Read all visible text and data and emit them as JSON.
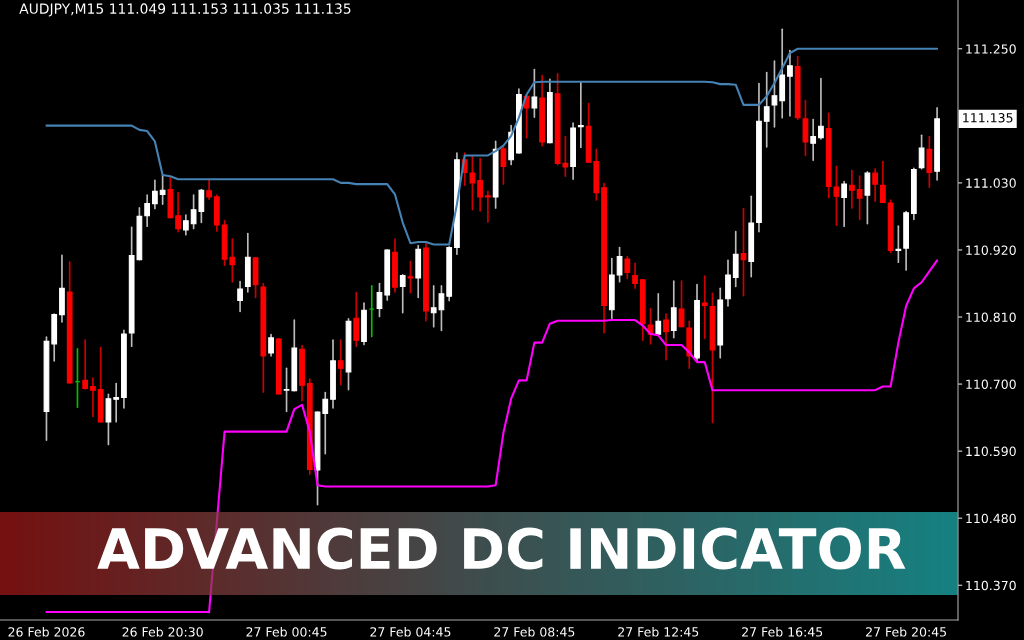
{
  "chart_data": {
    "type": "candlestick",
    "title": "ADVANCED DC INDICATOR",
    "subtitle": "AUDJPY,M15 111.049 111.153 111.035 111.135",
    "categories": [
      "26 Feb 2026",
      null,
      null,
      null,
      null,
      null,
      null,
      null,
      null,
      null,
      null,
      null,
      null,
      null,
      null,
      "26 Feb 20:30",
      null,
      null,
      null,
      null,
      null,
      null,
      null,
      null,
      null,
      null,
      null,
      null,
      null,
      null,
      null,
      "27 Feb 00:45",
      null,
      null,
      null,
      null,
      null,
      null,
      null,
      null,
      null,
      null,
      null,
      null,
      null,
      null,
      null,
      "27 Feb 04:45",
      null,
      null,
      null,
      null,
      null,
      null,
      null,
      null,
      null,
      null,
      null,
      null,
      null,
      null,
      null,
      "27 Feb 08:45",
      null,
      null,
      null,
      null,
      null,
      null,
      null,
      null,
      null,
      null,
      null,
      null,
      null,
      null,
      null,
      "27 Feb 12:45",
      null,
      null,
      null,
      null,
      null,
      null,
      null,
      null,
      null,
      null,
      null,
      null,
      null,
      null,
      null,
      "27 Feb 16:45",
      null,
      null,
      null,
      null,
      null,
      null,
      null,
      null,
      null,
      null,
      null,
      null,
      null,
      null,
      null,
      "27 Feb 20:45",
      null,
      null,
      null,
      null
    ],
    "ohlc": [
      [
        110.655,
        110.777,
        110.608,
        110.77
      ],
      [
        110.766,
        110.815,
        110.738,
        110.814
      ],
      [
        110.814,
        110.911,
        110.802,
        110.857
      ],
      [
        110.851,
        110.9,
        110.702,
        110.702
      ],
      [
        110.704,
        110.758,
        110.662,
        110.704
      ],
      [
        110.706,
        110.772,
        110.692,
        110.693
      ],
      [
        110.696,
        110.71,
        110.647,
        110.69
      ],
      [
        110.691,
        110.76,
        110.638,
        110.638
      ],
      [
        110.638,
        110.683,
        110.601,
        110.676
      ],
      [
        110.675,
        110.701,
        110.638,
        110.678
      ],
      [
        110.678,
        110.788,
        110.661,
        110.782
      ],
      [
        110.784,
        110.957,
        110.762,
        110.911
      ],
      [
        110.904,
        110.989,
        110.904,
        110.975
      ],
      [
        110.976,
        111.01,
        110.959,
        110.996
      ],
      [
        110.996,
        111.034,
        110.988,
        111.016
      ],
      [
        111.011,
        111.042,
        110.995,
        111.018
      ],
      [
        111.019,
        111.039,
        110.973,
        110.973
      ],
      [
        110.976,
        111.014,
        110.95,
        110.955
      ],
      [
        110.953,
        110.977,
        110.945,
        110.968
      ],
      [
        110.963,
        111.01,
        110.955,
        110.986
      ],
      [
        110.983,
        111.019,
        110.965,
        111.018
      ],
      [
        111.017,
        111.034,
        111.003,
        111.007
      ],
      [
        111.007,
        111.01,
        110.951,
        110.961
      ],
      [
        110.961,
        110.968,
        110.895,
        110.905
      ],
      [
        110.908,
        110.938,
        110.868,
        110.896
      ],
      [
        110.837,
        110.868,
        110.819,
        110.856
      ],
      [
        110.86,
        110.947,
        110.851,
        110.908
      ],
      [
        110.907,
        110.907,
        110.842,
        110.863
      ],
      [
        110.859,
        110.865,
        110.687,
        110.746
      ],
      [
        110.751,
        110.781,
        110.746,
        110.776
      ],
      [
        110.774,
        110.774,
        110.684,
        110.684
      ],
      [
        110.69,
        110.726,
        110.655,
        110.691
      ],
      [
        110.689,
        110.805,
        110.689,
        110.759
      ],
      [
        110.757,
        110.763,
        110.673,
        110.698
      ],
      [
        110.701,
        110.708,
        110.552,
        110.56
      ],
      [
        110.559,
        110.654,
        110.502,
        110.654
      ],
      [
        110.652,
        110.686,
        110.586,
        110.675
      ],
      [
        110.675,
        110.772,
        110.661,
        110.738
      ],
      [
        110.738,
        110.772,
        110.699,
        110.726
      ],
      [
        110.72,
        110.807,
        110.691,
        110.803
      ],
      [
        110.808,
        110.85,
        110.762,
        110.772
      ],
      [
        110.77,
        110.833,
        110.765,
        110.821
      ],
      [
        110.823,
        110.861,
        110.778,
        110.823
      ],
      [
        110.824,
        110.865,
        110.811,
        110.85
      ],
      [
        110.846,
        110.92,
        110.838,
        110.92
      ],
      [
        110.916,
        110.938,
        110.851,
        110.859
      ],
      [
        110.86,
        110.879,
        110.817,
        110.878
      ],
      [
        110.876,
        110.901,
        110.85,
        110.874
      ],
      [
        110.874,
        110.927,
        110.842,
        110.921
      ],
      [
        110.923,
        110.932,
        110.804,
        110.82
      ],
      [
        110.817,
        110.861,
        110.794,
        110.825
      ],
      [
        110.822,
        110.861,
        110.788,
        110.848
      ],
      [
        110.844,
        110.925,
        110.837,
        110.924
      ],
      [
        110.924,
        111.079,
        110.913,
        111.068
      ],
      [
        111.068,
        111.079,
        111.026,
        111.047
      ],
      [
        111.046,
        111.074,
        110.986,
        111.03
      ],
      [
        111.034,
        111.07,
        110.984,
        111.007
      ],
      [
        111.009,
        111.016,
        110.966,
        111.007
      ],
      [
        111.007,
        111.098,
        110.989,
        111.085
      ],
      [
        111.086,
        111.091,
        111.028,
        111.057
      ],
      [
        111.068,
        111.124,
        111.06,
        111.113
      ],
      [
        111.079,
        111.184,
        111.079,
        111.175
      ],
      [
        111.172,
        111.175,
        111.104,
        111.153
      ],
      [
        111.153,
        111.216,
        111.138,
        111.171
      ],
      [
        111.169,
        111.206,
        111.091,
        111.097
      ],
      [
        111.096,
        111.2,
        111.096,
        111.178
      ],
      [
        111.176,
        111.209,
        111.06,
        111.062
      ],
      [
        111.062,
        111.106,
        111.041,
        111.056
      ],
      [
        111.057,
        111.128,
        111.036,
        111.12
      ],
      [
        111.122,
        111.195,
        111.088,
        111.124
      ],
      [
        111.123,
        111.16,
        111.064,
        111.064
      ],
      [
        111.065,
        111.085,
        111.002,
        111.014
      ],
      [
        111.022,
        111.029,
        110.784,
        110.829
      ],
      [
        110.822,
        110.906,
        110.808,
        110.879
      ],
      [
        110.879,
        110.924,
        110.868,
        110.909
      ],
      [
        110.905,
        110.909,
        110.873,
        110.883
      ],
      [
        110.878,
        110.898,
        110.857,
        110.865
      ],
      [
        110.871,
        110.871,
        110.772,
        110.799
      ],
      [
        110.797,
        110.824,
        110.766,
        110.782
      ],
      [
        110.782,
        110.848,
        110.781,
        110.803
      ],
      [
        110.805,
        110.815,
        110.74,
        110.786
      ],
      [
        110.788,
        110.869,
        110.776,
        110.825
      ],
      [
        110.823,
        110.869,
        110.794,
        110.794
      ],
      [
        110.792,
        110.803,
        110.726,
        110.746
      ],
      [
        110.743,
        110.863,
        110.739,
        110.837
      ],
      [
        110.833,
        110.877,
        110.775,
        110.829
      ],
      [
        110.827,
        110.849,
        110.637,
        110.756
      ],
      [
        110.764,
        110.857,
        110.743,
        110.838
      ],
      [
        110.84,
        110.903,
        110.828,
        110.879
      ],
      [
        110.875,
        110.95,
        110.86,
        110.913
      ],
      [
        110.914,
        110.988,
        110.845,
        110.904
      ],
      [
        110.901,
        111.008,
        110.876,
        110.964
      ],
      [
        110.965,
        111.193,
        110.95,
        111.131
      ],
      [
        111.131,
        111.211,
        111.089,
        111.155
      ],
      [
        111.158,
        111.23,
        111.122,
        111.173
      ],
      [
        111.165,
        111.282,
        111.137,
        111.207
      ],
      [
        111.205,
        111.247,
        111.14,
        111.222
      ],
      [
        111.221,
        111.237,
        111.134,
        111.137
      ],
      [
        111.135,
        111.165,
        111.075,
        111.097
      ],
      [
        111.095,
        111.134,
        111.067,
        111.106
      ],
      [
        111.104,
        111.201,
        111.102,
        111.123
      ],
      [
        111.119,
        111.144,
        111.006,
        111.024
      ],
      [
        111.023,
        111.057,
        110.961,
        111.008
      ],
      [
        111.006,
        111.032,
        110.959,
        111.028
      ],
      [
        111.026,
        111.05,
        110.989,
        111.018
      ],
      [
        111.019,
        111.041,
        110.97,
        111.005
      ],
      [
        111.01,
        111.048,
        110.963,
        111.046
      ],
      [
        111.046,
        111.053,
        111.0,
        111.028
      ],
      [
        111.026,
        111.065,
        110.998,
        110.998
      ],
      [
        110.997,
        111.002,
        110.916,
        110.919
      ],
      [
        110.919,
        110.959,
        110.9,
        110.921
      ],
      [
        110.923,
        110.983,
        110.887,
        110.981
      ],
      [
        110.98,
        111.054,
        110.97,
        111.052
      ],
      [
        111.055,
        111.108,
        111.053,
        111.087
      ],
      [
        111.085,
        111.106,
        111.023,
        111.047
      ],
      [
        111.049,
        111.153,
        111.035,
        111.135
      ]
    ],
    "series": [
      {
        "type": "line",
        "color": "#4682b4",
        "values": [
          111.124,
          111.124,
          111.124,
          111.124,
          111.124,
          111.124,
          111.124,
          111.124,
          111.124,
          111.124,
          111.124,
          111.124,
          111.117,
          111.115,
          111.098,
          111.043,
          111.041,
          111.036,
          111.036,
          111.036,
          111.036,
          111.036,
          111.036,
          111.036,
          111.036,
          111.036,
          111.036,
          111.036,
          111.036,
          111.036,
          111.036,
          111.036,
          111.036,
          111.036,
          111.036,
          111.036,
          111.036,
          111.036,
          111.03,
          111.03,
          111.028,
          111.028,
          111.028,
          111.028,
          111.028,
          111.011,
          110.965,
          110.931,
          110.933,
          110.933,
          110.929,
          110.929,
          110.929,
          110.995,
          111.075,
          111.075,
          111.075,
          111.075,
          111.082,
          111.091,
          111.107,
          111.137,
          111.175,
          111.195,
          111.196,
          111.196,
          111.196,
          111.196,
          111.196,
          111.196,
          111.196,
          111.196,
          111.196,
          111.196,
          111.196,
          111.196,
          111.196,
          111.196,
          111.196,
          111.196,
          111.196,
          111.196,
          111.196,
          111.196,
          111.196,
          111.196,
          111.195,
          111.192,
          111.192,
          111.191,
          111.158,
          111.158,
          111.158,
          111.172,
          111.194,
          111.218,
          111.243,
          111.25,
          111.25,
          111.25,
          111.25,
          111.25,
          111.25,
          111.25,
          111.25,
          111.25,
          111.25,
          111.25,
          111.25,
          111.25,
          111.25,
          111.25,
          111.25,
          111.25,
          111.25,
          111.25
        ]
      },
      {
        "type": "line",
        "color": "#ff00ff",
        "values": [
          110.326,
          110.326,
          110.326,
          110.326,
          110.326,
          110.326,
          110.326,
          110.326,
          110.326,
          110.326,
          110.326,
          110.326,
          110.326,
          110.326,
          110.326,
          110.326,
          110.326,
          110.326,
          110.326,
          110.326,
          110.326,
          110.326,
          null,
          110.622,
          110.622,
          110.622,
          110.622,
          110.622,
          110.622,
          110.622,
          110.622,
          110.622,
          110.659,
          110.666,
          110.622,
          110.534,
          110.532,
          110.532,
          110.532,
          110.532,
          110.532,
          110.532,
          110.532,
          110.532,
          110.532,
          110.532,
          110.532,
          110.532,
          110.532,
          110.532,
          110.532,
          110.532,
          110.532,
          110.532,
          110.532,
          110.532,
          110.532,
          110.532,
          110.534,
          110.62,
          110.676,
          110.706,
          110.706,
          110.768,
          110.768,
          110.799,
          110.804,
          110.804,
          110.804,
          110.804,
          110.804,
          110.804,
          110.804,
          110.805,
          110.805,
          110.805,
          110.805,
          110.796,
          110.782,
          110.78,
          110.764,
          110.764,
          110.764,
          110.752,
          110.736,
          110.736,
          110.69,
          110.69,
          110.69,
          110.69,
          110.69,
          110.69,
          110.69,
          110.69,
          110.69,
          110.69,
          110.69,
          110.69,
          110.69,
          110.69,
          110.69,
          110.69,
          110.69,
          110.69,
          110.69,
          110.69,
          110.69,
          110.69,
          110.696,
          110.696,
          110.768,
          110.828,
          110.857,
          110.867,
          110.885,
          110.903
        ]
      }
    ],
    "ylim": [
      110.313,
      111.33
    ],
    "yticks": [
      {
        "value": 111.25,
        "label": "111.250"
      },
      {
        "value": 111.03,
        "label": "111.030"
      },
      {
        "value": 110.92,
        "label": "110.920"
      },
      {
        "value": 110.81,
        "label": "110.810"
      },
      {
        "value": 110.7,
        "label": "110.700"
      },
      {
        "value": 110.59,
        "label": "110.590"
      },
      {
        "value": 110.48,
        "label": "110.480"
      },
      {
        "value": 110.37,
        "label": "110.370"
      }
    ],
    "annotations": [
      "111.135"
    ],
    "grid": false,
    "legend": false
  }
}
